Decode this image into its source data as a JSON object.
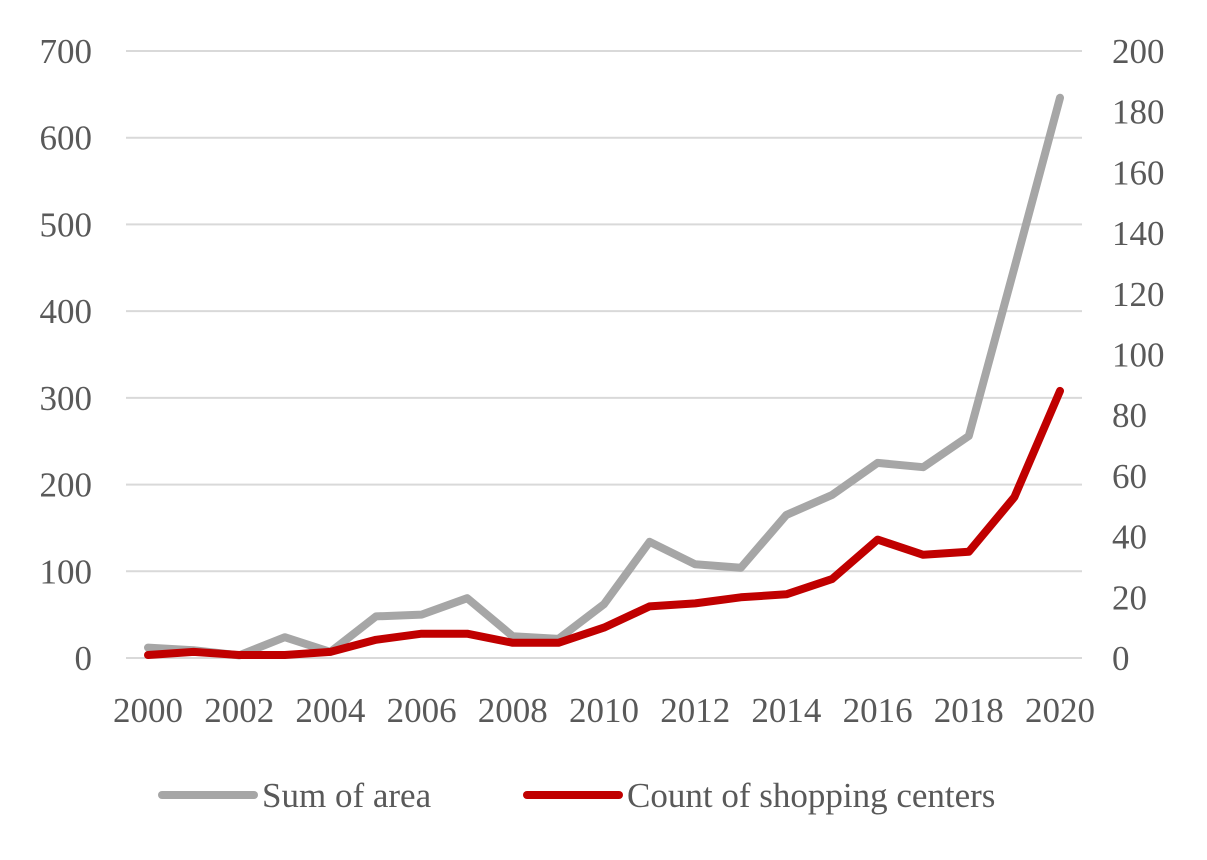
{
  "chart_data": {
    "type": "line",
    "x": [
      2000,
      2001,
      2002,
      2003,
      2004,
      2005,
      2006,
      2007,
      2008,
      2009,
      2010,
      2011,
      2012,
      2013,
      2014,
      2015,
      2016,
      2017,
      2018,
      2019,
      2020
    ],
    "x_tick_labels": [
      "2000",
      "2002",
      "2004",
      "2006",
      "2008",
      "2010",
      "2012",
      "2014",
      "2016",
      "2018",
      "2020"
    ],
    "series": [
      {
        "name": "Sum of area",
        "axis": "left",
        "color": "#a6a6a6",
        "values": [
          12,
          9,
          3,
          24,
          7,
          48,
          50,
          69,
          25,
          22,
          62,
          134,
          108,
          104,
          165,
          188,
          225,
          220,
          256,
          450,
          646
        ]
      },
      {
        "name": "Count of shopping centers",
        "axis": "right",
        "color": "#c00000",
        "values": [
          1,
          2,
          1,
          1,
          2,
          6,
          8,
          8,
          5,
          5,
          10,
          17,
          18,
          20,
          21,
          26,
          39,
          34,
          35,
          53,
          88
        ]
      }
    ],
    "y_left": {
      "range": [
        0,
        700
      ],
      "ticks": [
        "0",
        "100",
        "200",
        "300",
        "400",
        "500",
        "600",
        "700"
      ]
    },
    "y_right": {
      "range": [
        0,
        200
      ],
      "ticks": [
        "0",
        "20",
        "40",
        "60",
        "80",
        "100",
        "120",
        "140",
        "160",
        "180",
        "200"
      ]
    },
    "grid": true,
    "legend_position": "bottom"
  }
}
